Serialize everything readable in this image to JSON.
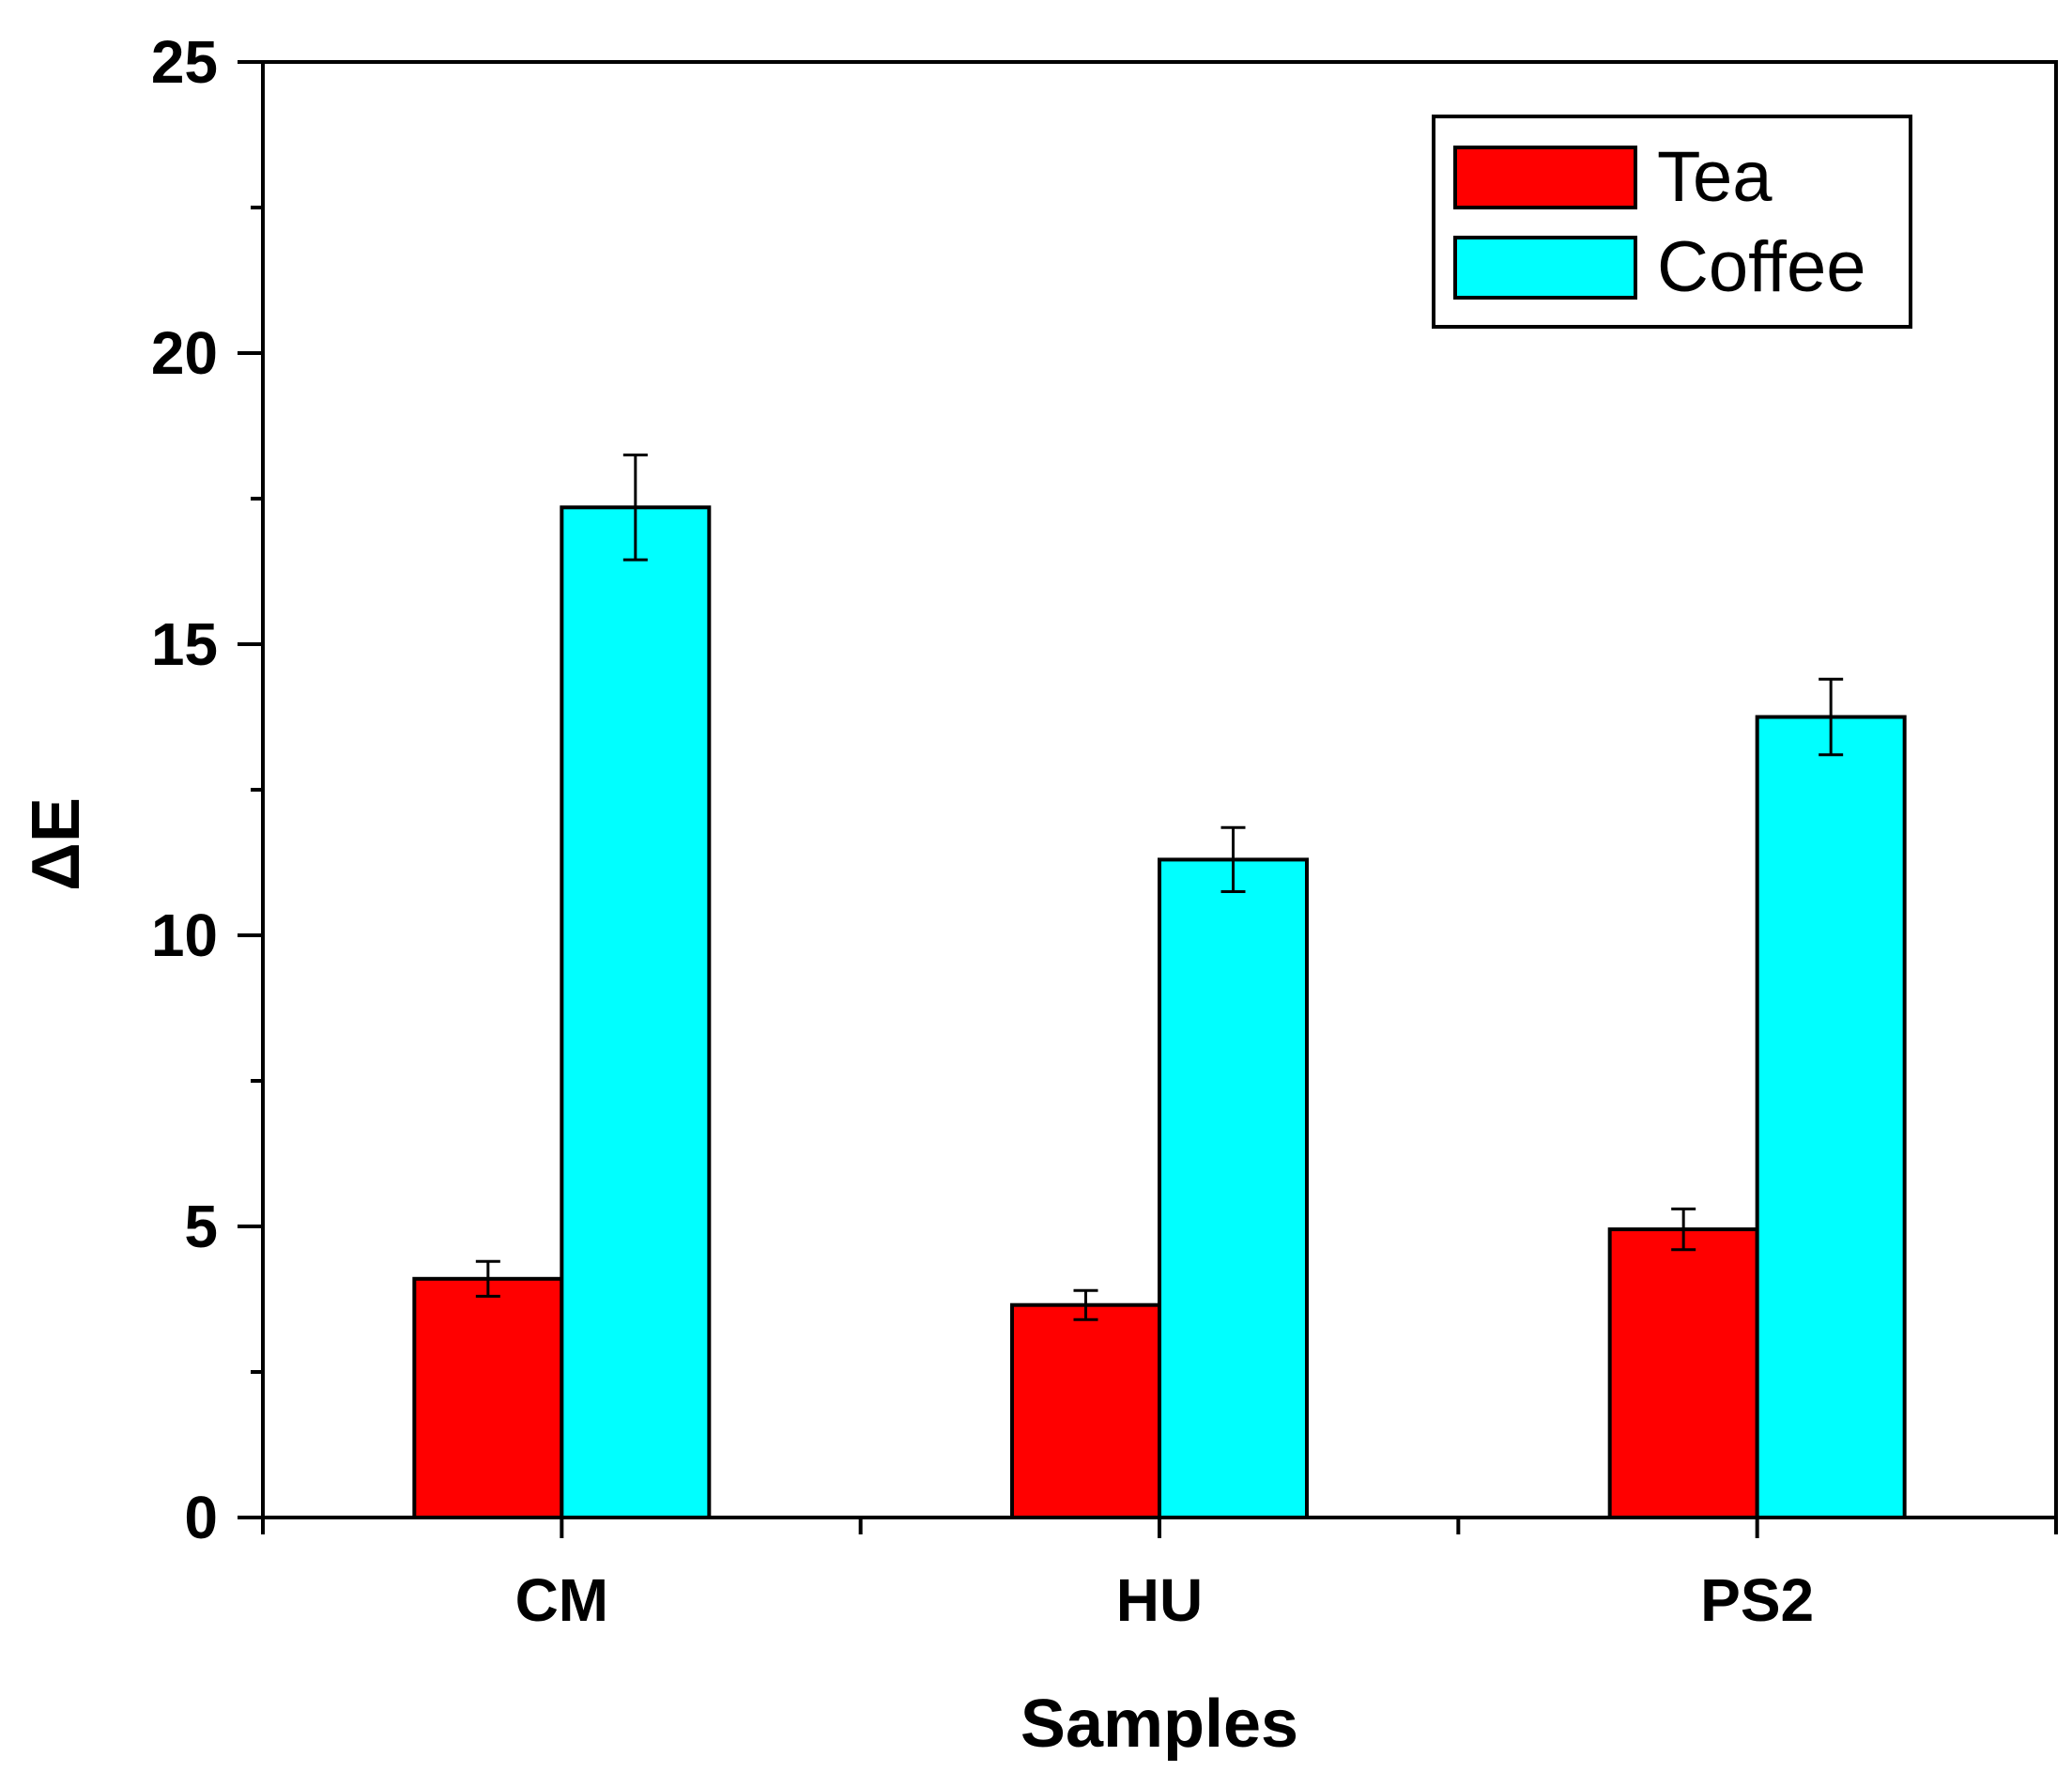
{
  "chart_data": {
    "type": "bar",
    "title": "",
    "xlabel": "Samples",
    "ylabel": "ΔE",
    "ylim": [
      0,
      25
    ],
    "yticks": [
      0,
      5,
      10,
      15,
      20,
      25
    ],
    "y_minor_step": 2.5,
    "categories": [
      "CM",
      "HU",
      "PS2"
    ],
    "series": [
      {
        "name": "Tea",
        "color": "#ff0000",
        "values": [
          4.1,
          3.65,
          4.95
        ],
        "errors": [
          0.3,
          0.25,
          0.35
        ]
      },
      {
        "name": "Coffee",
        "color": "#00ffff",
        "values": [
          17.35,
          11.3,
          13.75
        ],
        "errors": [
          0.9,
          0.55,
          0.65
        ]
      }
    ],
    "legend": "top-right",
    "grid": false
  }
}
